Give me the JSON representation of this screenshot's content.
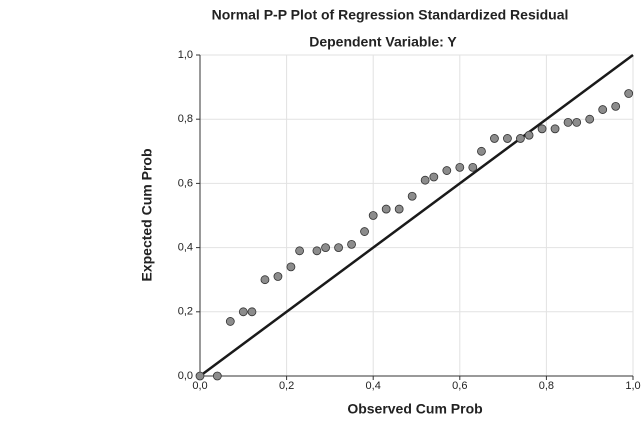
{
  "chart_data": {
    "type": "scatter",
    "title": "Normal P-P Plot of Regression Standardized Residual",
    "subtitle": "Dependent Variable: Y",
    "x_label": "Observed Cum Prob",
    "y_label": "Expected Cum Prob",
    "x": [
      0.0,
      0.04,
      0.07,
      0.1,
      0.12,
      0.15,
      0.18,
      0.21,
      0.23,
      0.27,
      0.29,
      0.32,
      0.35,
      0.38,
      0.4,
      0.43,
      0.46,
      0.49,
      0.52,
      0.54,
      0.57,
      0.6,
      0.63,
      0.65,
      0.68,
      0.71,
      0.74,
      0.76,
      0.79,
      0.82,
      0.85,
      0.87,
      0.9,
      0.93,
      0.96,
      0.99
    ],
    "values": [
      0.0,
      0.0,
      0.17,
      0.2,
      0.2,
      0.3,
      0.31,
      0.34,
      0.39,
      0.39,
      0.4,
      0.4,
      0.41,
      0.45,
      0.5,
      0.52,
      0.52,
      0.56,
      0.61,
      0.62,
      0.64,
      0.65,
      0.65,
      0.7,
      0.74,
      0.74,
      0.74,
      0.75,
      0.77,
      0.77,
      0.79,
      0.79,
      0.8,
      0.83,
      0.84,
      0.88
    ],
    "color": "#8c8c8c",
    "xlim": [
      0,
      1
    ],
    "ylim": [
      0,
      1
    ],
    "xticks": [
      {
        "value": 0,
        "label": "0,0"
      },
      {
        "value": 0.2,
        "label": "0,2"
      },
      {
        "value": 0.4,
        "label": "0,4"
      },
      {
        "value": 0.6,
        "label": "0,6"
      },
      {
        "value": 0.8,
        "label": "0,8"
      },
      {
        "value": 1,
        "label": "1,0"
      }
    ],
    "yticks": [
      {
        "value": 0,
        "label": "0,0"
      },
      {
        "value": 0.2,
        "label": "0,2"
      },
      {
        "value": 0.4,
        "label": "0,4"
      },
      {
        "value": 0.6,
        "label": "0,6"
      },
      {
        "value": 0.8,
        "label": "0,8"
      },
      {
        "value": 1,
        "label": "1,0"
      }
    ],
    "grid": true,
    "diagonal": true
  }
}
